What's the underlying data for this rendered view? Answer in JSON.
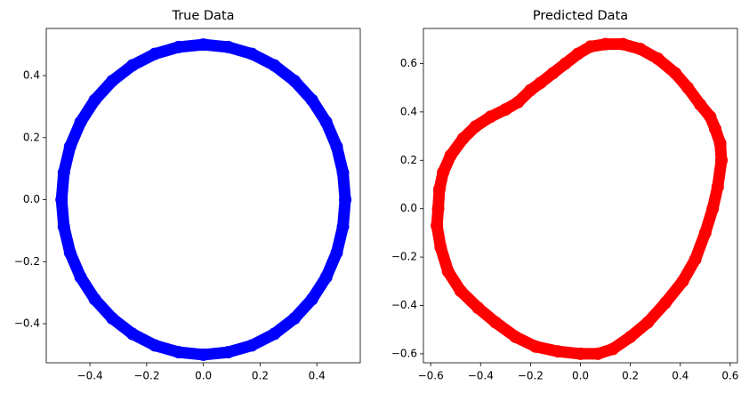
{
  "chart_data": [
    {
      "type": "scatter",
      "title": "True Data",
      "color": "#0000ff",
      "x": [
        0.5,
        0.492,
        0.47,
        0.433,
        0.383,
        0.321,
        0.25,
        0.171,
        0.087,
        0,
        -0.087,
        -0.171,
        -0.25,
        -0.321,
        -0.383,
        -0.433,
        -0.47,
        -0.492,
        -0.5,
        -0.492,
        -0.47,
        -0.433,
        -0.383,
        -0.321,
        -0.25,
        -0.171,
        -0.087,
        0,
        0.087,
        0.171,
        0.25,
        0.321,
        0.383,
        0.433,
        0.47,
        0.492,
        0.5
      ],
      "y": [
        0,
        0.087,
        0.171,
        0.25,
        0.321,
        0.383,
        0.433,
        0.47,
        0.492,
        0.5,
        0.492,
        0.47,
        0.433,
        0.383,
        0.321,
        0.25,
        0.171,
        0.087,
        0,
        -0.087,
        -0.171,
        -0.25,
        -0.321,
        -0.383,
        -0.433,
        -0.47,
        -0.492,
        -0.5,
        -0.492,
        -0.47,
        -0.433,
        -0.383,
        -0.321,
        -0.25,
        -0.171,
        -0.087,
        0
      ],
      "xlim": [
        -0.554,
        0.553
      ],
      "ylim": [
        -0.526,
        0.552
      ],
      "xticks": [
        {
          "value": -0.4,
          "label": "−0.4"
        },
        {
          "value": -0.2,
          "label": "−0.2"
        },
        {
          "value": 0,
          "label": "0.0"
        },
        0.2,
        0.4
      ],
      "yticks": [
        {
          "value": -0.4,
          "label": "−0.4"
        },
        {
          "value": -0.2,
          "label": "−0.2"
        },
        {
          "value": 0,
          "label": "0.0"
        },
        0.2,
        0.4
      ]
    },
    {
      "type": "scatter",
      "title": "Predicted Data",
      "color": "#ff0000",
      "x": [
        0.565,
        0.56,
        0.54,
        0.52,
        0.48,
        0.43,
        0.38,
        0.31,
        0.24,
        0.17,
        0.1,
        0.04,
        -0.01,
        -0.06,
        -0.11,
        -0.16,
        -0.2,
        -0.25,
        -0.3,
        -0.36,
        -0.42,
        -0.47,
        -0.52,
        -0.55,
        -0.565,
        -0.57,
        -0.575,
        -0.56,
        -0.53,
        -0.48,
        -0.41,
        -0.34,
        -0.26,
        -0.18,
        -0.09,
        0,
        0.07,
        0.13,
        0.2,
        0.27,
        0.34,
        0.41,
        0.46,
        0.5,
        0.53,
        0.55,
        0.565
      ],
      "y": [
        0.2,
        0.27,
        0.33,
        0.38,
        0.43,
        0.5,
        0.56,
        0.62,
        0.66,
        0.68,
        0.68,
        0.67,
        0.64,
        0.6,
        0.56,
        0.52,
        0.49,
        0.44,
        0.41,
        0.38,
        0.34,
        0.29,
        0.22,
        0.15,
        0.08,
        0,
        -0.07,
        -0.16,
        -0.26,
        -0.34,
        -0.41,
        -0.47,
        -0.53,
        -0.57,
        -0.59,
        -0.6,
        -0.6,
        -0.58,
        -0.53,
        -0.47,
        -0.39,
        -0.3,
        -0.21,
        -0.1,
        0,
        0.09,
        0.2
      ],
      "xlim": [
        -0.629,
        0.629
      ],
      "ylim": [
        -0.637,
        0.745
      ],
      "xticks": [
        {
          "value": -0.6,
          "label": "−0.6"
        },
        {
          "value": -0.4,
          "label": "−0.4"
        },
        {
          "value": -0.2,
          "label": "−0.2"
        },
        {
          "value": 0,
          "label": "0.0"
        },
        0.2,
        0.4,
        0.6
      ],
      "yticks": [
        {
          "value": -0.6,
          "label": "−0.6"
        },
        {
          "value": -0.4,
          "label": "−0.4"
        },
        {
          "value": -0.2,
          "label": "−0.2"
        },
        {
          "value": 0,
          "label": "0.0"
        },
        0.2,
        0.4,
        0.6
      ]
    }
  ]
}
